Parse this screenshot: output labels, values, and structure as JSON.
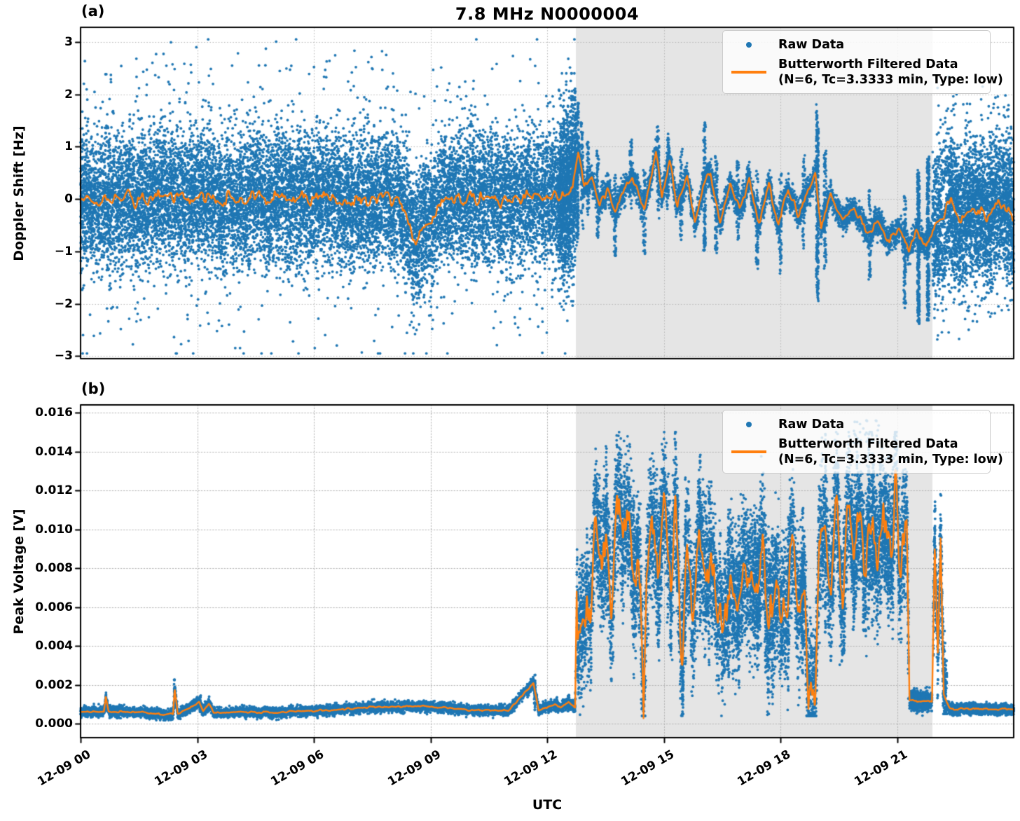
{
  "figure": {
    "title": "7.8 MHz N0000004",
    "panel_a_tag": "(a)",
    "panel_b_tag": "(b)",
    "xlabel": "UTC"
  },
  "legend": {
    "raw_label": "Raw Data",
    "filtered_label_line1": "Butterworth Filtered Data",
    "filtered_label_line2": "(N=6, Tc=3.3333 min, Type: low)"
  },
  "colors": {
    "raw": "#1f77b4",
    "filtered": "#ff7f0e",
    "shade": "#e5e5e5",
    "grid": "#b4b4b4",
    "axis": "#000000"
  },
  "chart_data": [
    {
      "type": "scatter",
      "panel": "a",
      "ylabel": "Doppler Shift [Hz]",
      "xlabel": "UTC",
      "ylim": [
        -3.05,
        3.28
      ],
      "ytick_values": [
        3,
        2,
        1,
        0,
        -1,
        -2,
        -3
      ],
      "ytick_labels": [
        "3",
        "2",
        "1",
        "0",
        "−1",
        "−2",
        "−3"
      ],
      "xlim_hours": [
        0,
        24
      ],
      "xticks": [
        {
          "hours": 0,
          "label": "12-09 00"
        },
        {
          "hours": 3,
          "label": "12-09 03"
        },
        {
          "hours": 6,
          "label": "12-09 06"
        },
        {
          "hours": 9,
          "label": "12-09 09"
        },
        {
          "hours": 12,
          "label": "12-09 12"
        },
        {
          "hours": 15,
          "label": "12-09 15"
        },
        {
          "hours": 18,
          "label": "12-09 18"
        },
        {
          "hours": 21,
          "label": "12-09 21"
        }
      ],
      "grid": "dotted",
      "legend_position": "upper right",
      "shaded_region_hours": [
        12.74,
        21.91
      ],
      "filtered_line_keypoints": [
        [
          0,
          0.0
        ],
        [
          8.2,
          0.0
        ],
        [
          8.45,
          -0.4
        ],
        [
          8.62,
          -0.92
        ],
        [
          8.72,
          -0.6
        ],
        [
          8.9,
          -0.55
        ],
        [
          9.1,
          -0.3
        ],
        [
          9.35,
          -0.05
        ],
        [
          12.6,
          0.05
        ],
        [
          12.8,
          0.85
        ],
        [
          12.95,
          0.3
        ],
        [
          13.15,
          0.45
        ],
        [
          13.35,
          -0.15
        ],
        [
          13.55,
          0.2
        ],
        [
          13.75,
          -0.3
        ],
        [
          13.95,
          0.1
        ],
        [
          14.2,
          0.45
        ],
        [
          14.5,
          -0.25
        ],
        [
          14.8,
          0.9
        ],
        [
          14.95,
          0.1
        ],
        [
          15.15,
          0.7
        ],
        [
          15.35,
          -0.15
        ],
        [
          15.6,
          0.35
        ],
        [
          15.8,
          -0.4
        ],
        [
          16.0,
          0.2
        ],
        [
          16.2,
          0.55
        ],
        [
          16.45,
          -0.5
        ],
        [
          16.7,
          0.25
        ],
        [
          16.95,
          -0.2
        ],
        [
          17.2,
          0.4
        ],
        [
          17.45,
          -0.45
        ],
        [
          17.7,
          0.25
        ],
        [
          17.95,
          -0.5
        ],
        [
          18.2,
          0.2
        ],
        [
          18.45,
          -0.3
        ],
        [
          18.7,
          0.15
        ],
        [
          18.9,
          0.5
        ],
        [
          19.05,
          -0.55
        ],
        [
          19.3,
          0.15
        ],
        [
          19.6,
          -0.4
        ],
        [
          19.9,
          -0.15
        ],
        [
          20.2,
          -0.65
        ],
        [
          20.5,
          -0.45
        ],
        [
          20.8,
          -0.8
        ],
        [
          21.05,
          -0.55
        ],
        [
          21.3,
          -1.0
        ],
        [
          21.5,
          -0.6
        ],
        [
          21.75,
          -0.85
        ],
        [
          21.91,
          -0.6
        ],
        [
          22.1,
          -0.35
        ],
        [
          22.4,
          -0.1
        ],
        [
          22.7,
          -0.4
        ],
        [
          23.0,
          -0.15
        ],
        [
          23.3,
          -0.35
        ],
        [
          23.6,
          -0.1
        ],
        [
          24,
          -0.3
        ]
      ],
      "filtered_line_wiggle": [
        {
          "range": [
            0,
            12.74
          ],
          "amp": 0.13,
          "period_hours": 0.1
        },
        {
          "range": [
            12.74,
            21.91
          ],
          "amp": 0.07,
          "period_hours": 0.09
        },
        {
          "range": [
            21.91,
            24
          ],
          "amp": 0.12,
          "period_hours": 0.1
        }
      ],
      "raw_scatter": {
        "dense_segments": [
          {
            "t": [
              0,
              12.74
            ],
            "sigma": 0.62,
            "n": 15500,
            "clip": [
              -2.95,
              3.1
            ]
          },
          {
            "t": [
              12.3,
              12.74
            ],
            "sigma": 0.85,
            "n": 900,
            "clip": [
              -2.6,
              2.4
            ]
          },
          {
            "t": [
              12.74,
              21.91
            ],
            "sigma": 0.13,
            "n": 5200,
            "clip": [
              -2.4,
              1.9
            ]
          },
          {
            "t": [
              21.91,
              24
            ],
            "sigma": 0.66,
            "n": 3600,
            "clip": [
              -2.5,
              2.4
            ]
          }
        ],
        "outliers": [
          {
            "t": [
              0,
              12.74
            ],
            "n": 330,
            "offset": [
              1.7,
              3.0
            ]
          },
          {
            "t": [
              21.95,
              24
            ],
            "n": 70,
            "offset": [
              1.6,
              2.4
            ]
          }
        ],
        "bursts": [
          [
            12.78,
            1.0,
            1.6,
            150
          ],
          [
            12.9,
            0.9,
            0.9,
            60
          ],
          [
            13.05,
            0.8,
            0.7,
            50
          ],
          [
            13.3,
            0.9,
            0.8,
            60
          ],
          [
            13.75,
            0.7,
            0.9,
            55
          ],
          [
            14.15,
            0.8,
            0.6,
            50
          ],
          [
            14.5,
            0.7,
            0.9,
            60
          ],
          [
            14.85,
            0.7,
            0.9,
            70
          ],
          [
            15.1,
            0.65,
            0.7,
            70
          ],
          [
            15.45,
            0.8,
            0.9,
            55
          ],
          [
            16.05,
            1.15,
            1.3,
            120
          ],
          [
            16.35,
            0.9,
            1.0,
            65
          ],
          [
            16.9,
            0.8,
            0.8,
            50
          ],
          [
            17.4,
            0.9,
            1.0,
            60
          ],
          [
            18.0,
            0.8,
            1.1,
            60
          ],
          [
            18.6,
            0.9,
            0.9,
            55
          ],
          [
            18.95,
            1.5,
            1.9,
            240
          ],
          [
            19.15,
            1.2,
            1.0,
            85
          ],
          [
            20.3,
            0.8,
            0.9,
            60
          ],
          [
            21.2,
            0.9,
            1.3,
            95
          ],
          [
            21.55,
            1.2,
            1.7,
            280
          ],
          [
            21.8,
            1.6,
            1.5,
            280
          ]
        ]
      }
    },
    {
      "type": "scatter",
      "panel": "b",
      "ylabel": "Peak Voltage [V]",
      "xlabel": "UTC",
      "ylim": [
        -0.00072,
        0.0164
      ],
      "ytick_values": [
        0.016,
        0.014,
        0.012,
        0.01,
        0.008,
        0.006,
        0.004,
        0.002,
        0.0
      ],
      "ytick_labels": [
        "0.016",
        "0.014",
        "0.012",
        "0.010",
        "0.008",
        "0.006",
        "0.004",
        "0.002",
        "0.000"
      ],
      "xlim_hours": [
        0,
        24
      ],
      "xticks": [
        {
          "hours": 0,
          "label": "12-09 00"
        },
        {
          "hours": 3,
          "label": "12-09 03"
        },
        {
          "hours": 6,
          "label": "12-09 06"
        },
        {
          "hours": 9,
          "label": "12-09 09"
        },
        {
          "hours": 12,
          "label": "12-09 12"
        },
        {
          "hours": 15,
          "label": "12-09 15"
        },
        {
          "hours": 18,
          "label": "12-09 18"
        },
        {
          "hours": 21,
          "label": "12-09 21"
        }
      ],
      "grid": "dotted",
      "legend_position": "upper right",
      "shaded_region_hours": [
        12.74,
        21.91
      ],
      "filtered_line_keypoints": [
        [
          0,
          0.00062
        ],
        [
          0.6,
          0.00062
        ],
        [
          0.65,
          0.0014
        ],
        [
          0.72,
          0.00062
        ],
        [
          1.5,
          0.0006
        ],
        [
          2.1,
          0.00048
        ],
        [
          2.38,
          0.00048
        ],
        [
          2.42,
          0.0018
        ],
        [
          2.5,
          0.0005
        ],
        [
          3.05,
          0.0011
        ],
        [
          3.15,
          0.0006
        ],
        [
          3.3,
          0.001
        ],
        [
          3.42,
          0.00058
        ],
        [
          5.0,
          0.00058
        ],
        [
          6.5,
          0.0007
        ],
        [
          7.5,
          0.00085
        ],
        [
          8.5,
          0.0009
        ],
        [
          9.3,
          0.00085
        ],
        [
          10.0,
          0.0007
        ],
        [
          11.0,
          0.00068
        ],
        [
          11.65,
          0.0021
        ],
        [
          11.78,
          0.00068
        ],
        [
          12.2,
          0.001
        ],
        [
          12.35,
          0.0008
        ],
        [
          12.55,
          0.0011
        ],
        [
          12.72,
          0.0008
        ],
        [
          12.76,
          0.0068
        ],
        [
          12.85,
          0.004
        ],
        [
          12.95,
          0.007
        ],
        [
          13.1,
          0.0055
        ],
        [
          13.25,
          0.011
        ],
        [
          13.4,
          0.0075
        ],
        [
          13.5,
          0.0105
        ],
        [
          13.65,
          0.006
        ],
        [
          13.8,
          0.0115
        ],
        [
          13.95,
          0.0085
        ],
        [
          14.1,
          0.0105
        ],
        [
          14.25,
          0.006
        ],
        [
          14.4,
          0.009
        ],
        [
          14.48,
          0.0005
        ],
        [
          14.56,
          0.008
        ],
        [
          14.7,
          0.0105
        ],
        [
          14.85,
          0.0065
        ],
        [
          15.0,
          0.0112
        ],
        [
          15.15,
          0.008
        ],
        [
          15.3,
          0.0105
        ],
        [
          15.45,
          0.004
        ],
        [
          15.6,
          0.0085
        ],
        [
          15.75,
          0.005
        ],
        [
          15.9,
          0.0095
        ],
        [
          16.1,
          0.006
        ],
        [
          16.3,
          0.009
        ],
        [
          16.5,
          0.0045
        ],
        [
          16.7,
          0.008
        ],
        [
          16.9,
          0.0055
        ],
        [
          17.1,
          0.009
        ],
        [
          17.3,
          0.006
        ],
        [
          17.5,
          0.0095
        ],
        [
          17.7,
          0.0045
        ],
        [
          17.9,
          0.008
        ],
        [
          18.1,
          0.005
        ],
        [
          18.3,
          0.0085
        ],
        [
          18.5,
          0.004
        ],
        [
          18.62,
          0.007
        ],
        [
          18.72,
          0.0008
        ],
        [
          18.9,
          0.0008
        ],
        [
          19.0,
          0.0095
        ],
        [
          19.15,
          0.0112
        ],
        [
          19.3,
          0.007
        ],
        [
          19.45,
          0.0105
        ],
        [
          19.6,
          0.0075
        ],
        [
          19.75,
          0.0118
        ],
        [
          19.9,
          0.0085
        ],
        [
          20.05,
          0.011
        ],
        [
          20.2,
          0.007
        ],
        [
          20.35,
          0.0115
        ],
        [
          20.5,
          0.008
        ],
        [
          20.65,
          0.0118
        ],
        [
          20.8,
          0.009
        ],
        [
          20.95,
          0.0115
        ],
        [
          21.1,
          0.0075
        ],
        [
          21.25,
          0.0105
        ],
        [
          21.32,
          0.0012
        ],
        [
          21.9,
          0.0011
        ],
        [
          21.97,
          0.0092
        ],
        [
          22.05,
          0.0035
        ],
        [
          22.12,
          0.0095
        ],
        [
          22.2,
          0.0015
        ],
        [
          22.35,
          0.00075
        ],
        [
          24,
          0.00075
        ]
      ],
      "filtered_line_wiggle": [
        {
          "range": [
            0,
            12.74
          ],
          "amp": 4e-05,
          "period_hours": 0.08
        },
        {
          "range": [
            12.76,
            21.3
          ],
          "amp": 0.0016,
          "period_hours": 0.09
        },
        {
          "range": [
            21.3,
            24
          ],
          "amp": 5e-05,
          "period_hours": 0.08
        }
      ],
      "raw_scatter": {
        "dense_segments": [
          {
            "t": [
              0,
              12.74
            ],
            "sigma": 0.00013,
            "n": 7200,
            "clip": [
              0.00018,
              0.016
            ]
          },
          {
            "t": [
              12.76,
              21.3
            ],
            "sigma": 0.0017,
            "n": 10500,
            "clip": [
              0.0004,
              0.015
            ]
          },
          {
            "t": [
              21.32,
              21.9
            ],
            "sigma": 0.00025,
            "n": 700,
            "clip": [
              0.0004,
              0.004
            ]
          },
          {
            "t": [
              21.93,
              22.28
            ],
            "sigma": 0.0012,
            "n": 600,
            "clip": [
              0.0005,
              0.0128
            ]
          },
          {
            "t": [
              22.3,
              24
            ],
            "sigma": 0.00012,
            "n": 2400,
            "clip": [
              0.0002,
              0.002
            ]
          }
        ],
        "spikes": [
          [
            0.65,
            0.0016,
            25
          ],
          [
            2.42,
            0.0023,
            30
          ],
          [
            3.08,
            0.0015,
            22
          ],
          [
            3.3,
            0.0014,
            18
          ],
          [
            11.68,
            0.0026,
            30
          ],
          [
            12.25,
            0.0014,
            15
          ],
          [
            12.55,
            0.0015,
            15
          ]
        ],
        "streaks": {
          "count": 60,
          "t_range": [
            12.8,
            21.28
          ],
          "halfspan": [
            0.002,
            0.0055
          ],
          "n_each": 34
        },
        "high_outliers": {
          "t_range": [
            19.8,
            20.6
          ],
          "n": 22,
          "v_range": [
            0.0144,
            0.0156
          ]
        }
      }
    }
  ]
}
